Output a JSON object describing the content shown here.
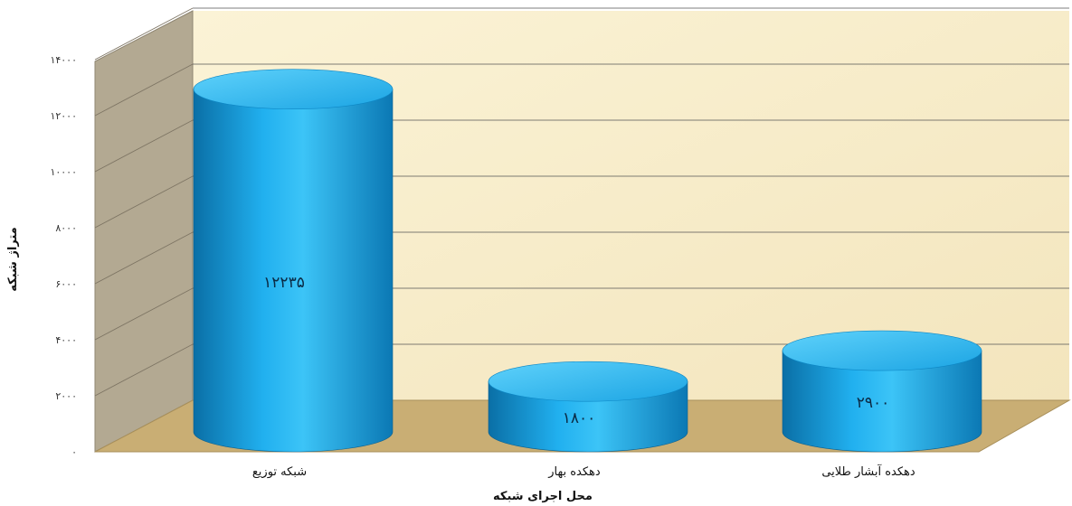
{
  "chart_data": {
    "type": "bar",
    "style": "3d-cylinder",
    "categories": [
      "شبکه توزیع",
      "دهکده بهار",
      "دهکده آبشار طلایی"
    ],
    "values": [
      12235,
      1800,
      2900
    ],
    "value_labels": [
      "۱۲۲۳۵",
      "۱۸۰۰",
      "۲۹۰۰"
    ],
    "xlabel": "محل اجرای شبکه",
    "ylabel": "متراژ شبکه",
    "ylim": [
      0,
      14000
    ],
    "yticks": [
      0,
      2000,
      4000,
      6000,
      8000,
      10000,
      12000,
      14000
    ],
    "ytick_labels": [
      "۰",
      "۲۰۰۰",
      "۴۰۰۰",
      "۶۰۰۰",
      "۸۰۰۰",
      "۱۰۰۰۰",
      "۱۲۰۰۰",
      "۱۴۰۰۰"
    ],
    "grid": true,
    "colors": {
      "bar": "#1aa7e6",
      "bar_dark": "#0a6fa6",
      "bar_top": "#39bff5",
      "back_wall": "#f7ecc8",
      "side_wall": "#b3a992",
      "floor": "#c9ae74",
      "grid": "#555555"
    }
  }
}
